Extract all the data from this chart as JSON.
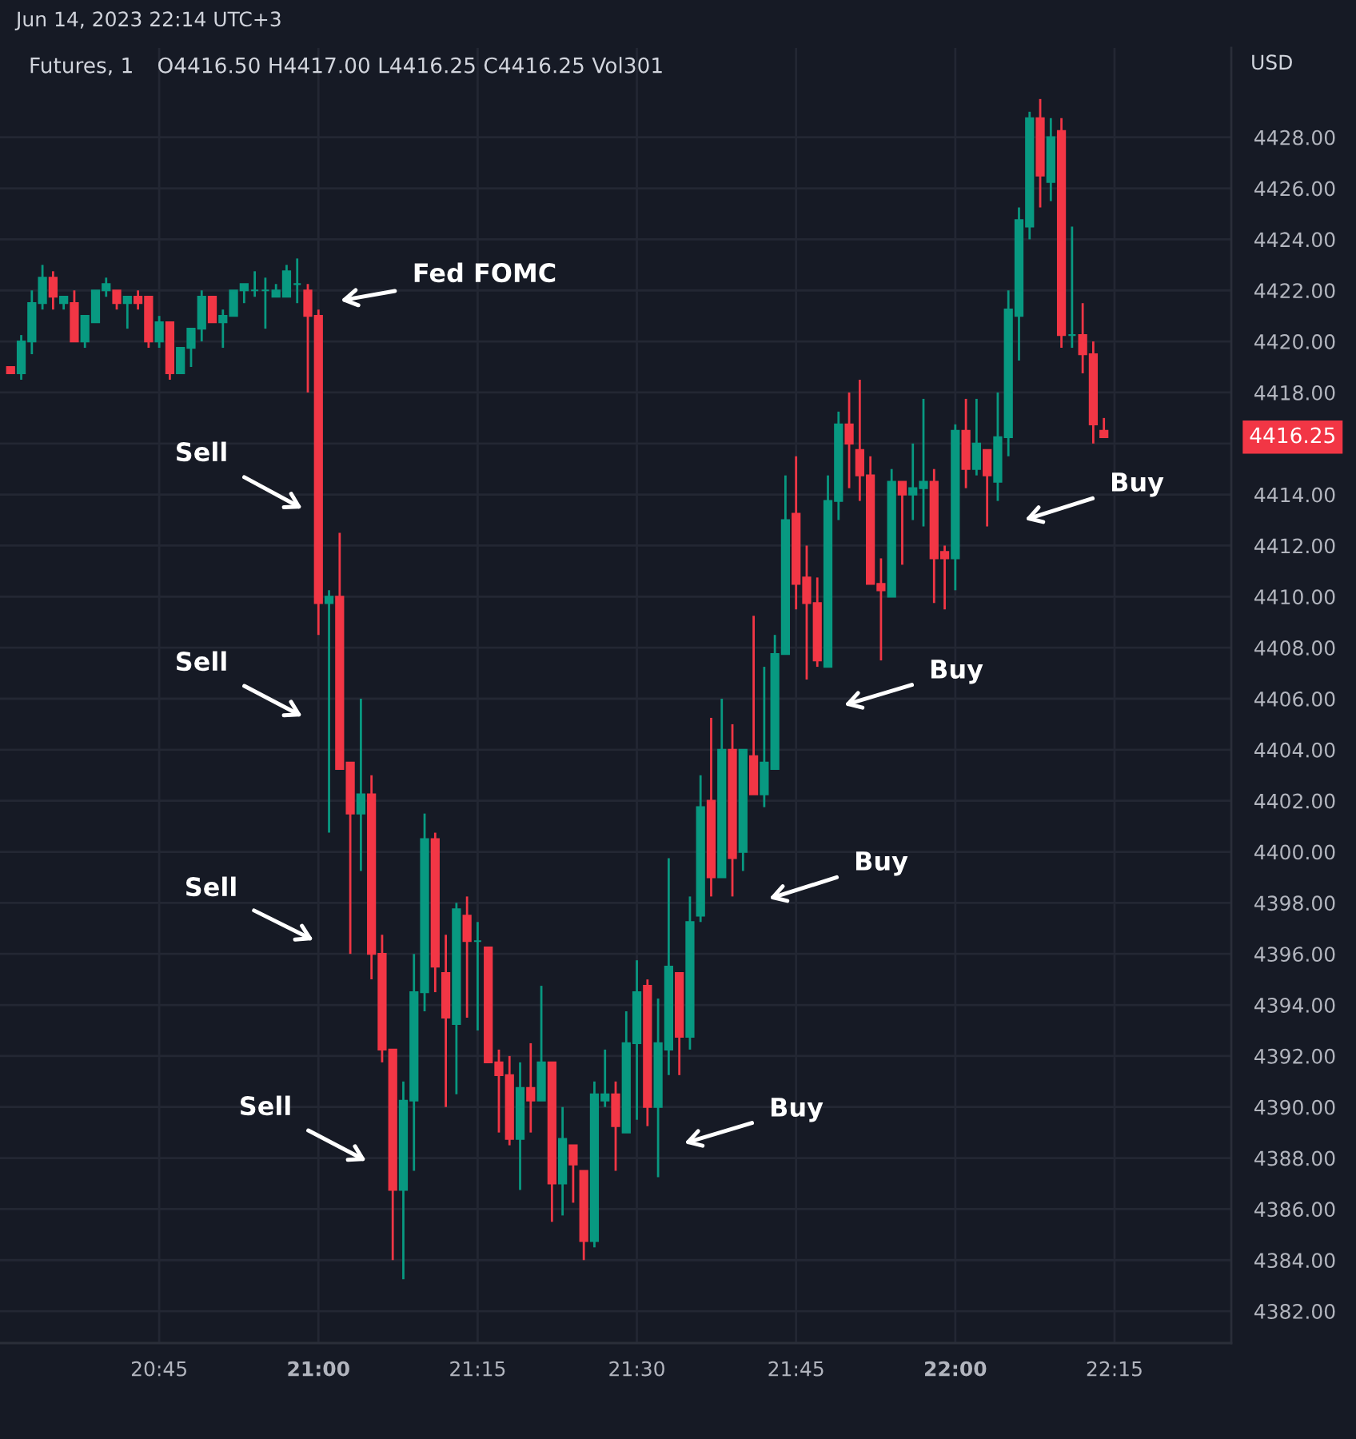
{
  "chart_data": {
    "type": "candlestick",
    "title": "Futures, 1",
    "subtitle": "Jun 14, 2023 22:14 UTC+3",
    "ylabel": "USD",
    "x": [
      "2023-06-14T20:31",
      "2023-06-14T20:32",
      "2023-06-14T20:33",
      "2023-06-14T20:34",
      "2023-06-14T20:35",
      "2023-06-14T20:36",
      "2023-06-14T20:37",
      "2023-06-14T20:38",
      "2023-06-14T20:39",
      "2023-06-14T20:40",
      "2023-06-14T20:41",
      "2023-06-14T20:42",
      "2023-06-14T20:43",
      "2023-06-14T20:44",
      "2023-06-14T20:45",
      "2023-06-14T20:46",
      "2023-06-14T20:47",
      "2023-06-14T20:48",
      "2023-06-14T20:49",
      "2023-06-14T20:50",
      "2023-06-14T20:51",
      "2023-06-14T20:52",
      "2023-06-14T20:53",
      "2023-06-14T20:54",
      "2023-06-14T20:55",
      "2023-06-14T20:56",
      "2023-06-14T20:57",
      "2023-06-14T20:58",
      "2023-06-14T20:59",
      "2023-06-14T21:00",
      "2023-06-14T21:01",
      "2023-06-14T21:02",
      "2023-06-14T21:03",
      "2023-06-14T21:04",
      "2023-06-14T21:05",
      "2023-06-14T21:06",
      "2023-06-14T21:07",
      "2023-06-14T21:08",
      "2023-06-14T21:09",
      "2023-06-14T21:10",
      "2023-06-14T21:11",
      "2023-06-14T21:12",
      "2023-06-14T21:13",
      "2023-06-14T21:14",
      "2023-06-14T21:15",
      "2023-06-14T21:16",
      "2023-06-14T21:17",
      "2023-06-14T21:18",
      "2023-06-14T21:19",
      "2023-06-14T21:20",
      "2023-06-14T21:21",
      "2023-06-14T21:22",
      "2023-06-14T21:23",
      "2023-06-14T21:24",
      "2023-06-14T21:25",
      "2023-06-14T21:26",
      "2023-06-14T21:27",
      "2023-06-14T21:28",
      "2023-06-14T21:29",
      "2023-06-14T21:30",
      "2023-06-14T21:31",
      "2023-06-14T21:32",
      "2023-06-14T21:33",
      "2023-06-14T21:34",
      "2023-06-14T21:35",
      "2023-06-14T21:36",
      "2023-06-14T21:37",
      "2023-06-14T21:38",
      "2023-06-14T21:39",
      "2023-06-14T21:40",
      "2023-06-14T21:41",
      "2023-06-14T21:42",
      "2023-06-14T21:43",
      "2023-06-14T21:44",
      "2023-06-14T21:45",
      "2023-06-14T21:46",
      "2023-06-14T21:47",
      "2023-06-14T21:48",
      "2023-06-14T21:49",
      "2023-06-14T21:50",
      "2023-06-14T21:51",
      "2023-06-14T21:52",
      "2023-06-14T21:53",
      "2023-06-14T21:54",
      "2023-06-14T21:55",
      "2023-06-14T21:56",
      "2023-06-14T21:57",
      "2023-06-14T21:58",
      "2023-06-14T21:59",
      "2023-06-14T22:00",
      "2023-06-14T22:01",
      "2023-06-14T22:02",
      "2023-06-14T22:03",
      "2023-06-14T22:04",
      "2023-06-14T22:05",
      "2023-06-14T22:06",
      "2023-06-14T22:07",
      "2023-06-14T22:08",
      "2023-06-14T22:09",
      "2023-06-14T22:10",
      "2023-06-14T22:11",
      "2023-06-14T22:12",
      "2023-06-14T22:13",
      "2023-06-14T22:14"
    ],
    "ohlc": [
      [
        4419.0,
        4419.0,
        4418.75,
        4418.75
      ],
      [
        4418.75,
        4420.25,
        4418.5,
        4420.0
      ],
      [
        4420.0,
        4422.0,
        4419.5,
        4421.5
      ],
      [
        4421.5,
        4423.0,
        4421.25,
        4422.5
      ],
      [
        4422.5,
        4422.75,
        4421.25,
        4421.75
      ],
      [
        4421.5,
        4421.75,
        4421.25,
        4421.75
      ],
      [
        4421.5,
        4422.0,
        4420.0,
        4420.0
      ],
      [
        4420.0,
        4421.0,
        4419.75,
        4421.0
      ],
      [
        4420.75,
        4422.0,
        4420.75,
        4422.0
      ],
      [
        4422.0,
        4422.5,
        4421.75,
        4422.25
      ],
      [
        4422.0,
        4422.0,
        4421.25,
        4421.5
      ],
      [
        4421.5,
        4421.75,
        4420.5,
        4421.75
      ],
      [
        4421.75,
        4422.0,
        4421.25,
        4421.5
      ],
      [
        4421.75,
        4421.75,
        4419.75,
        4420.0
      ],
      [
        4420.0,
        4421.0,
        4419.75,
        4420.75
      ],
      [
        4420.75,
        4420.75,
        4418.5,
        4418.75
      ],
      [
        4418.75,
        4419.75,
        4418.75,
        4419.75
      ],
      [
        4419.75,
        4420.5,
        4419.0,
        4420.5
      ],
      [
        4420.5,
        4422.0,
        4420.0,
        4421.75
      ],
      [
        4421.75,
        4421.75,
        4420.75,
        4420.75
      ],
      [
        4420.75,
        4421.25,
        4419.75,
        4421.0
      ],
      [
        4421.0,
        4422.0,
        4421.0,
        4422.0
      ],
      [
        4422.0,
        4422.25,
        4421.5,
        4422.25
      ],
      [
        4422.0,
        4422.75,
        4421.75,
        4422.0
      ],
      [
        4422.0,
        4422.5,
        4420.5,
        4422.0
      ],
      [
        4421.75,
        4422.25,
        4421.75,
        4422.0
      ],
      [
        4421.75,
        4423.0,
        4421.75,
        4422.75
      ],
      [
        4422.25,
        4423.25,
        4421.5,
        4422.25
      ],
      [
        4422.0,
        4422.25,
        4418.0,
        4421.0
      ],
      [
        4421.0,
        4421.25,
        4408.5,
        4409.75
      ],
      [
        4409.75,
        4410.25,
        4400.75,
        4410.0
      ],
      [
        4410.0,
        4412.5,
        4403.25,
        4403.25
      ],
      [
        4403.5,
        4403.5,
        4396.0,
        4401.5
      ],
      [
        4401.5,
        4406.0,
        4399.25,
        4402.25
      ],
      [
        4402.25,
        4403.0,
        4395.0,
        4396.0
      ],
      [
        4396.0,
        4396.75,
        4391.75,
        4392.25
      ],
      [
        4392.25,
        4392.25,
        4384.0,
        4386.75
      ],
      [
        4386.75,
        4391.0,
        4383.25,
        4390.25
      ],
      [
        4390.25,
        4396.0,
        4387.5,
        4394.5
      ],
      [
        4394.5,
        4401.5,
        4393.75,
        4400.5
      ],
      [
        4400.5,
        4400.75,
        4394.5,
        4395.5
      ],
      [
        4395.25,
        4396.75,
        4390.0,
        4393.5
      ],
      [
        4393.25,
        4398.0,
        4390.5,
        4397.75
      ],
      [
        4397.5,
        4398.25,
        4393.5,
        4396.5
      ],
      [
        4396.5,
        4397.25,
        4393.0,
        4396.5
      ],
      [
        4396.25,
        4396.25,
        4391.75,
        4391.75
      ],
      [
        4391.75,
        4392.25,
        4389.0,
        4391.25
      ],
      [
        4391.25,
        4392.0,
        4388.5,
        4388.75
      ],
      [
        4388.75,
        4391.75,
        4386.75,
        4390.75
      ],
      [
        4390.75,
        4392.5,
        4389.0,
        4390.25
      ],
      [
        4390.25,
        4394.75,
        4390.25,
        4391.75
      ],
      [
        4391.75,
        4391.75,
        4385.5,
        4387.0
      ],
      [
        4387.0,
        4390.0,
        4385.75,
        4388.75
      ],
      [
        4388.5,
        4388.5,
        4386.25,
        4387.75
      ],
      [
        4387.5,
        4387.5,
        4384.0,
        4384.75
      ],
      [
        4384.75,
        4391.0,
        4384.5,
        4390.5
      ],
      [
        4390.25,
        4392.25,
        4390.0,
        4390.5
      ],
      [
        4390.5,
        4391.0,
        4387.5,
        4389.25
      ],
      [
        4389.0,
        4393.75,
        4389.0,
        4392.5
      ],
      [
        4392.5,
        4395.75,
        4389.5,
        4394.5
      ],
      [
        4394.75,
        4395.0,
        4389.25,
        4390.0
      ],
      [
        4390.0,
        4394.25,
        4387.25,
        4392.5
      ],
      [
        4392.25,
        4399.75,
        4391.25,
        4395.5
      ],
      [
        4395.25,
        4395.25,
        4391.25,
        4392.75
      ],
      [
        4392.75,
        4398.25,
        4392.25,
        4397.25
      ],
      [
        4397.5,
        4403.0,
        4397.25,
        4401.75
      ],
      [
        4402.0,
        4405.25,
        4398.25,
        4399.0
      ],
      [
        4399.0,
        4406.0,
        4399.0,
        4404.0
      ],
      [
        4404.0,
        4405.0,
        4398.25,
        4399.75
      ],
      [
        4400.0,
        4404.0,
        4399.25,
        4404.0
      ],
      [
        4403.75,
        4409.25,
        4402.25,
        4402.25
      ],
      [
        4402.25,
        4407.25,
        4401.75,
        4403.5
      ],
      [
        4403.25,
        4408.5,
        4403.25,
        4407.75
      ],
      [
        4407.75,
        4414.75,
        4407.75,
        4413.0
      ],
      [
        4413.25,
        4415.5,
        4409.5,
        4410.5
      ],
      [
        4410.75,
        4412.0,
        4406.75,
        4409.75
      ],
      [
        4409.75,
        4410.75,
        4407.25,
        4407.5
      ],
      [
        4407.25,
        4414.75,
        4407.25,
        4413.75
      ],
      [
        4413.75,
        4417.25,
        4413.0,
        4416.75
      ],
      [
        4416.75,
        4418.0,
        4414.25,
        4416.0
      ],
      [
        4415.75,
        4418.5,
        4413.75,
        4414.75
      ],
      [
        4414.75,
        4415.5,
        4410.5,
        4410.5
      ],
      [
        4410.5,
        4411.5,
        4407.5,
        4410.25
      ],
      [
        4410.0,
        4415.0,
        4410.0,
        4414.5
      ],
      [
        4414.5,
        4414.5,
        4411.25,
        4414.0
      ],
      [
        4414.0,
        4416.0,
        4413.0,
        4414.25
      ],
      [
        4414.25,
        4417.75,
        4412.75,
        4414.5
      ],
      [
        4414.5,
        4415.0,
        4409.75,
        4411.5
      ],
      [
        4411.75,
        4412.0,
        4409.5,
        4411.5
      ],
      [
        4411.5,
        4416.75,
        4410.25,
        4416.5
      ],
      [
        4416.5,
        4417.75,
        4414.25,
        4415.0
      ],
      [
        4415.0,
        4417.75,
        4414.75,
        4416.0
      ],
      [
        4415.75,
        4415.75,
        4412.75,
        4414.75
      ],
      [
        4414.5,
        4418.0,
        4413.75,
        4416.25
      ],
      [
        4416.25,
        4422.0,
        4415.5,
        4421.25
      ],
      [
        4421.0,
        4425.25,
        4419.25,
        4424.75
      ],
      [
        4424.5,
        4429.0,
        4424.0,
        4428.75
      ],
      [
        4428.75,
        4429.5,
        4425.25,
        4426.5
      ],
      [
        4426.25,
        4428.75,
        4425.5,
        4428.0
      ],
      [
        4428.25,
        4428.75,
        4419.75,
        4420.25
      ],
      [
        4420.25,
        4424.5,
        4419.75,
        4420.25
      ],
      [
        4420.25,
        4421.5,
        4418.75,
        4419.5
      ],
      [
        4419.5,
        4420.0,
        4416.0,
        4416.75
      ],
      [
        4416.5,
        4417.0,
        4416.25,
        4416.25
      ]
    ],
    "colors": [
      "#f23645",
      "#089981",
      "#089981",
      "#089981",
      "#f23645",
      "#089981",
      "#f23645",
      "#089981",
      "#089981",
      "#089981",
      "#f23645",
      "#089981",
      "#f23645",
      "#f23645",
      "#089981",
      "#f23645",
      "#089981",
      "#089981",
      "#089981",
      "#f23645",
      "#089981",
      "#089981",
      "#089981",
      "#089981",
      "#089981",
      "#089981",
      "#089981",
      "#089981",
      "#f23645",
      "#f23645",
      "#089981",
      "#f23645",
      "#f23645",
      "#089981",
      "#f23645",
      "#f23645",
      "#f23645",
      "#089981",
      "#089981",
      "#089981",
      "#f23645",
      "#f23645",
      "#089981",
      "#f23645",
      "#089981",
      "#f23645",
      "#f23645",
      "#f23645",
      "#089981",
      "#f23645",
      "#089981",
      "#f23645",
      "#089981",
      "#f23645",
      "#f23645",
      "#089981",
      "#089981",
      "#f23645",
      "#089981",
      "#089981",
      "#f23645",
      "#089981",
      "#089981",
      "#f23645",
      "#089981",
      "#089981",
      "#f23645",
      "#089981",
      "#f23645",
      "#089981",
      "#f23645",
      "#089981",
      "#089981",
      "#089981",
      "#f23645",
      "#f23645",
      "#f23645",
      "#089981",
      "#089981",
      "#f23645",
      "#f23645",
      "#f23645",
      "#f23645",
      "#089981",
      "#f23645",
      "#089981",
      "#089981",
      "#f23645",
      "#f23645",
      "#089981",
      "#f23645",
      "#089981",
      "#f23645",
      "#089981",
      "#089981",
      "#089981",
      "#089981",
      "#f23645",
      "#089981",
      "#f23645",
      "#089981",
      "#f23645",
      "#f23645",
      "#f23645"
    ],
    "xlim": [
      "2023-06-14T20:30",
      "2023-06-14T22:26"
    ],
    "ylim": [
      4380.75,
      4431.5
    ],
    "xticks": [
      {
        "value": "2023-06-14T20:45",
        "label": "20:45"
      },
      {
        "value": "2023-06-14T21:00",
        "label": "21:00"
      },
      {
        "value": "2023-06-14T21:15",
        "label": "21:15"
      },
      {
        "value": "2023-06-14T21:30",
        "label": "21:30"
      },
      {
        "value": "2023-06-14T21:45",
        "label": "21:45"
      },
      {
        "value": "2023-06-14T22:00",
        "label": "22:00"
      },
      {
        "value": "2023-06-14T22:15",
        "label": "22:15"
      }
    ],
    "yticks": [
      {
        "value": 4382,
        "label": "4382.00"
      },
      {
        "value": 4384,
        "label": "4384.00"
      },
      {
        "value": 4386,
        "label": "4386.00"
      },
      {
        "value": 4388,
        "label": "4388.00"
      },
      {
        "value": 4390,
        "label": "4390.00"
      },
      {
        "value": 4392,
        "label": "4392.00"
      },
      {
        "value": 4394,
        "label": "4394.00"
      },
      {
        "value": 4396,
        "label": "4396.00"
      },
      {
        "value": 4398,
        "label": "4398.00"
      },
      {
        "value": 4400,
        "label": "4400.00"
      },
      {
        "value": 4402,
        "label": "4402.00"
      },
      {
        "value": 4404,
        "label": "4404.00"
      },
      {
        "value": 4406,
        "label": "4406.00"
      },
      {
        "value": 4408,
        "label": "4408.00"
      },
      {
        "value": 4410,
        "label": "4410.00"
      },
      {
        "value": 4412,
        "label": "4412.00"
      },
      {
        "value": 4414,
        "label": "4414.00"
      },
      {
        "value": 4416,
        "label": null
      },
      {
        "value": 4418,
        "label": "4418.00"
      },
      {
        "value": 4420,
        "label": "4420.00"
      },
      {
        "value": 4422,
        "label": "4422.00"
      },
      {
        "value": 4424,
        "label": "4424.00"
      },
      {
        "value": 4426,
        "label": "4426.00"
      },
      {
        "value": 4428,
        "label": "4428.00"
      }
    ],
    "grid": true,
    "annotations": [
      "O4416.50 H4417.00 L4416.25 C4416.25 Vol301",
      "4416.25",
      "Fed FOMC",
      "Sell",
      "Sell",
      "Sell",
      "Sell",
      "Buy",
      "Buy",
      "Buy",
      "Buy"
    ]
  }
}
